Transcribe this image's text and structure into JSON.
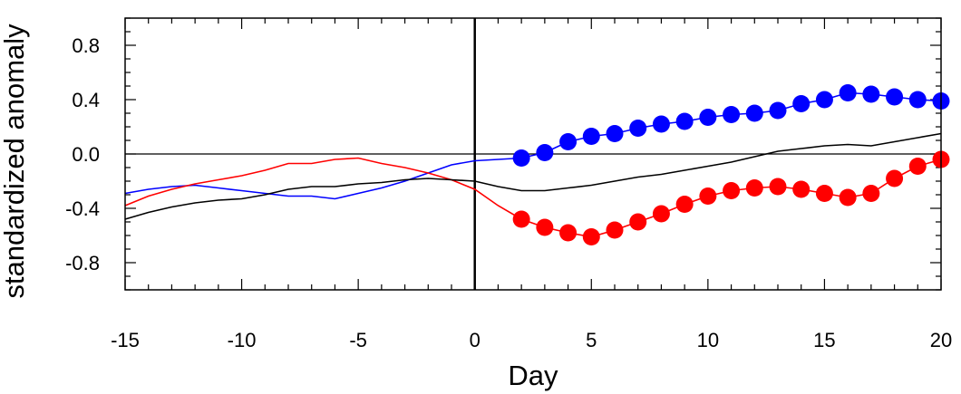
{
  "chart_data": {
    "type": "line",
    "title": "",
    "xlabel": "Day",
    "ylabel": "standardized anomaly",
    "xlim": [
      -15,
      20
    ],
    "ylim": [
      -1.0,
      1.0
    ],
    "x_ticks": [
      -15,
      -10,
      -5,
      0,
      5,
      10,
      15,
      20
    ],
    "x_tick_labels": [
      "-15",
      "-10",
      "-5",
      "0",
      "5",
      "10",
      "15",
      "20"
    ],
    "y_ticks": [
      -0.8,
      -0.4,
      0.0,
      0.4,
      0.8
    ],
    "y_tick_labels": [
      "-0.8",
      "-0.4",
      "0.0",
      "0.4",
      "0.8"
    ],
    "grid": false,
    "reference_lines": {
      "horizontal_y": 0.0,
      "vertical_x": 0
    },
    "series": [
      {
        "color": "#0000ff",
        "x": [
          -15,
          -14,
          -13,
          -12,
          -11,
          -10,
          -9,
          -8,
          -7,
          -6,
          -5,
          -4,
          -3,
          -2,
          -1,
          0,
          1,
          2,
          3,
          4,
          5,
          6,
          7,
          8,
          9,
          10,
          11,
          12,
          13,
          14,
          15,
          16,
          17,
          18,
          19,
          20
        ],
        "values": [
          -0.29,
          -0.26,
          -0.24,
          -0.23,
          -0.25,
          -0.27,
          -0.29,
          -0.31,
          -0.31,
          -0.33,
          -0.29,
          -0.25,
          -0.2,
          -0.14,
          -0.08,
          -0.05,
          -0.04,
          -0.03,
          0.01,
          0.09,
          0.13,
          0.15,
          0.19,
          0.22,
          0.24,
          0.27,
          0.29,
          0.3,
          0.32,
          0.37,
          0.4,
          0.45,
          0.44,
          0.42,
          0.4,
          0.39
        ],
        "markers_from_x": 2
      },
      {
        "color": "#ff0000",
        "x": [
          -15,
          -14,
          -13,
          -12,
          -11,
          -10,
          -9,
          -8,
          -7,
          -6,
          -5,
          -4,
          -3,
          -2,
          -1,
          0,
          1,
          2,
          3,
          4,
          5,
          6,
          7,
          8,
          9,
          10,
          11,
          12,
          13,
          14,
          15,
          16,
          17,
          18,
          19,
          20
        ],
        "values": [
          -0.38,
          -0.31,
          -0.26,
          -0.22,
          -0.19,
          -0.16,
          -0.12,
          -0.07,
          -0.07,
          -0.04,
          -0.03,
          -0.07,
          -0.1,
          -0.14,
          -0.19,
          -0.26,
          -0.38,
          -0.48,
          -0.54,
          -0.58,
          -0.61,
          -0.56,
          -0.5,
          -0.44,
          -0.37,
          -0.31,
          -0.27,
          -0.25,
          -0.24,
          -0.26,
          -0.29,
          -0.32,
          -0.29,
          -0.18,
          -0.09,
          -0.04
        ],
        "markers_from_x": 2
      },
      {
        "color": "#000000",
        "x": [
          -15,
          -14,
          -13,
          -12,
          -11,
          -10,
          -9,
          -8,
          -7,
          -6,
          -5,
          -4,
          -3,
          -2,
          -1,
          0,
          1,
          2,
          3,
          4,
          5,
          6,
          7,
          8,
          9,
          10,
          11,
          12,
          13,
          14,
          15,
          16,
          17,
          18,
          19,
          20
        ],
        "values": [
          -0.48,
          -0.43,
          -0.39,
          -0.36,
          -0.34,
          -0.33,
          -0.3,
          -0.26,
          -0.24,
          -0.24,
          -0.22,
          -0.21,
          -0.19,
          -0.18,
          -0.19,
          -0.2,
          -0.24,
          -0.27,
          -0.27,
          -0.25,
          -0.23,
          -0.2,
          -0.17,
          -0.15,
          -0.12,
          -0.09,
          -0.06,
          -0.02,
          0.02,
          0.04,
          0.06,
          0.07,
          0.06,
          0.09,
          0.12,
          0.15
        ],
        "markers_from_x": null
      }
    ]
  }
}
